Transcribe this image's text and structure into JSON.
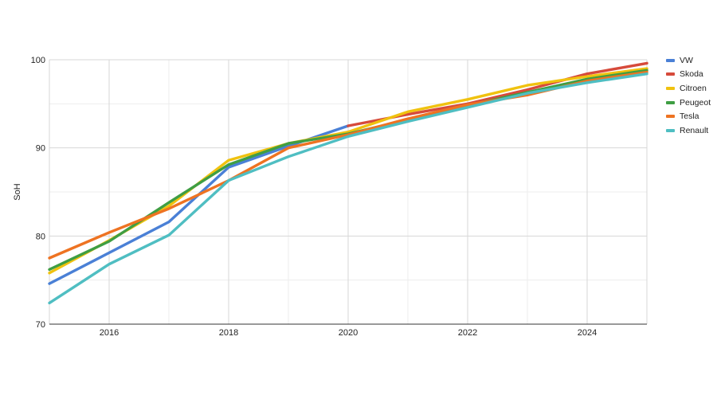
{
  "chart_data": {
    "type": "line",
    "title": "",
    "xlabel": "",
    "ylabel": "SoH",
    "xlim": [
      2015,
      2025
    ],
    "ylim": [
      70,
      100
    ],
    "x_ticks": [
      "2016",
      "2018",
      "2020",
      "2022",
      "2024"
    ],
    "y_ticks": [
      "70",
      "80",
      "90",
      "100"
    ],
    "grid": true,
    "legend_position": "right",
    "series": [
      {
        "name": "VW",
        "color": "#4a80d6",
        "points": [
          {
            "x": 2015,
            "y": 74.6
          },
          {
            "x": 2016,
            "y": 78.1
          },
          {
            "x": 2017,
            "y": 81.6
          },
          {
            "x": 2018,
            "y": 87.8
          },
          {
            "x": 2019,
            "y": 90.2
          },
          {
            "x": 2020,
            "y": 92.5
          }
        ]
      },
      {
        "name": "Skoda",
        "color": "#d64a3b",
        "points": [
          {
            "x": 2020,
            "y": 92.5
          },
          {
            "x": 2021,
            "y": 93.8
          },
          {
            "x": 2022,
            "y": 95.0
          },
          {
            "x": 2023,
            "y": 96.6
          },
          {
            "x": 2024,
            "y": 98.4
          },
          {
            "x": 2025,
            "y": 99.6
          }
        ]
      },
      {
        "name": "Citroen",
        "color": "#f0c20f",
        "points": [
          {
            "x": 2015,
            "y": 75.8
          },
          {
            "x": 2016,
            "y": 79.5
          },
          {
            "x": 2017,
            "y": 83.4
          },
          {
            "x": 2018,
            "y": 88.6
          },
          {
            "x": 2019,
            "y": 90.5
          },
          {
            "x": 2020,
            "y": 91.8
          },
          {
            "x": 2021,
            "y": 94.1
          },
          {
            "x": 2022,
            "y": 95.5
          },
          {
            "x": 2023,
            "y": 97.1
          },
          {
            "x": 2024,
            "y": 98.1
          },
          {
            "x": 2025,
            "y": 99.0
          }
        ]
      },
      {
        "name": "Peugeot",
        "color": "#3f9e43",
        "points": [
          {
            "x": 2015,
            "y": 76.2
          },
          {
            "x": 2016,
            "y": 79.4
          },
          {
            "x": 2017,
            "y": 83.8
          },
          {
            "x": 2018,
            "y": 88.1
          },
          {
            "x": 2019,
            "y": 90.5
          },
          {
            "x": 2020,
            "y": 91.6
          },
          {
            "x": 2021,
            "y": 93.2
          },
          {
            "x": 2022,
            "y": 94.8
          },
          {
            "x": 2023,
            "y": 96.3
          },
          {
            "x": 2024,
            "y": 97.8
          },
          {
            "x": 2025,
            "y": 98.8
          }
        ]
      },
      {
        "name": "Tesla",
        "color": "#ee7322",
        "points": [
          {
            "x": 2015,
            "y": 77.5
          },
          {
            "x": 2016,
            "y": 80.4
          },
          {
            "x": 2017,
            "y": 83.1
          },
          {
            "x": 2018,
            "y": 86.3
          },
          {
            "x": 2019,
            "y": 90.0
          },
          {
            "x": 2020,
            "y": 91.5
          },
          {
            "x": 2021,
            "y": 93.3
          },
          {
            "x": 2022,
            "y": 94.9
          },
          {
            "x": 2023,
            "y": 96.0
          },
          {
            "x": 2024,
            "y": 97.6
          },
          {
            "x": 2025,
            "y": 98.6
          }
        ]
      },
      {
        "name": "Renault",
        "color": "#4fbec2",
        "points": [
          {
            "x": 2015,
            "y": 72.4
          },
          {
            "x": 2016,
            "y": 76.8
          },
          {
            "x": 2017,
            "y": 80.1
          },
          {
            "x": 2018,
            "y": 86.3
          },
          {
            "x": 2019,
            "y": 89.0
          },
          {
            "x": 2020,
            "y": 91.3
          },
          {
            "x": 2021,
            "y": 93.0
          },
          {
            "x": 2022,
            "y": 94.6
          },
          {
            "x": 2023,
            "y": 96.2
          },
          {
            "x": 2024,
            "y": 97.4
          },
          {
            "x": 2025,
            "y": 98.4
          }
        ]
      }
    ]
  }
}
